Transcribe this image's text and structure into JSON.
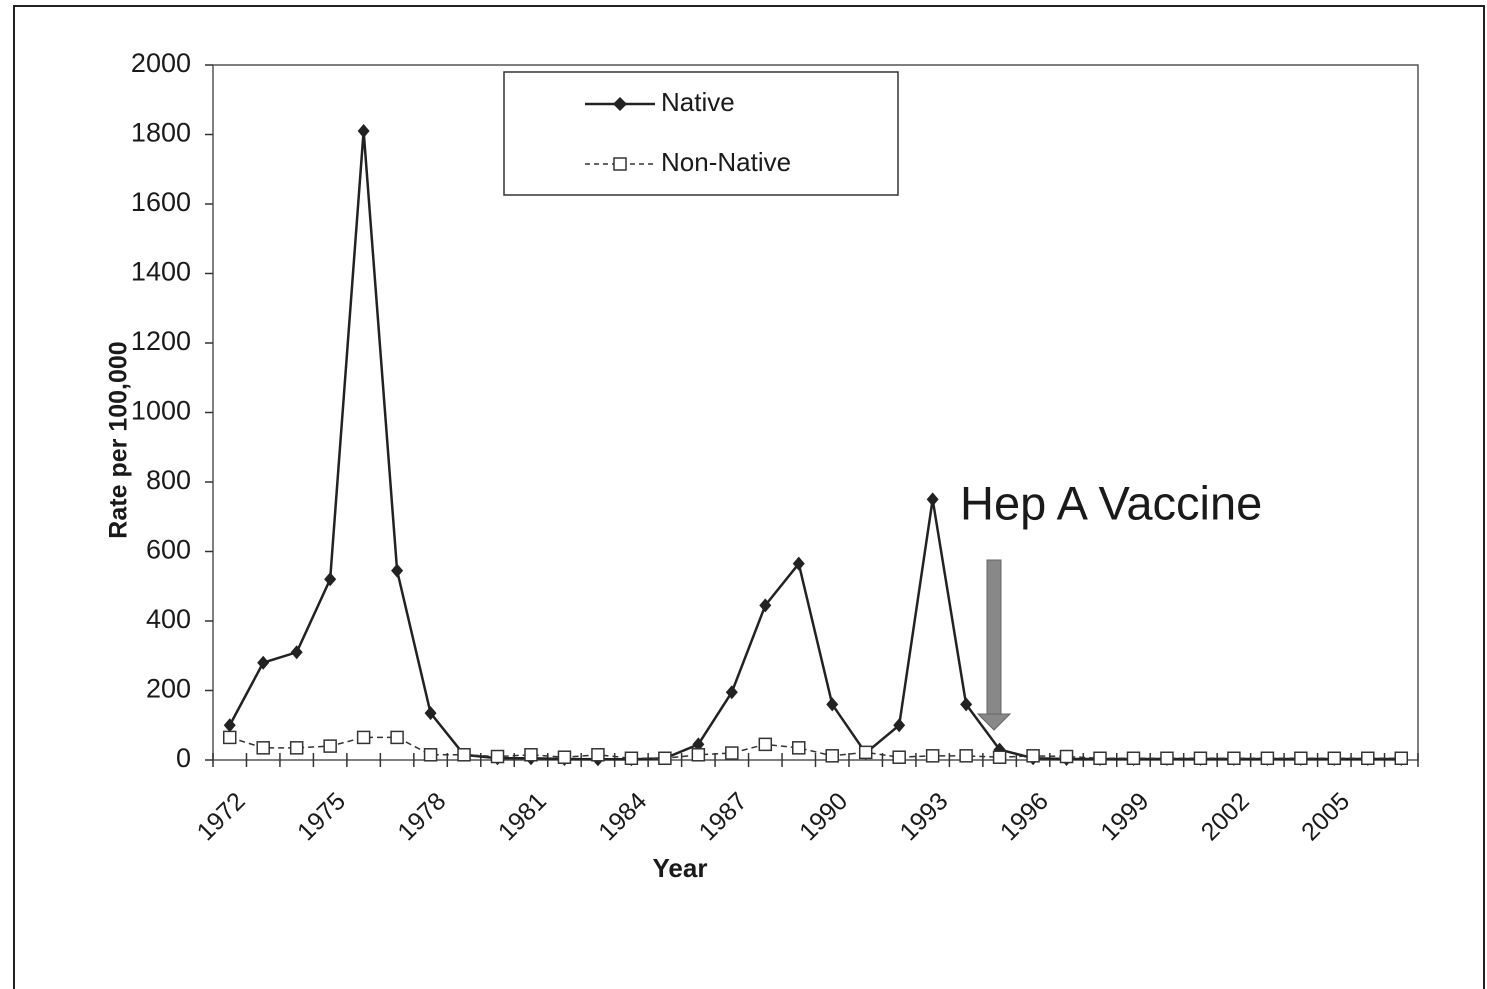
{
  "chart_data": {
    "type": "line",
    "x_label": "Year",
    "y_label": "Rate per 100,000",
    "annotation": "Hep A Vaccine",
    "categories": [
      "1972",
      null,
      null,
      "1975",
      null,
      null,
      "1978",
      null,
      null,
      "1981",
      null,
      null,
      "1984",
      null,
      null,
      "1987",
      null,
      null,
      "1990",
      null,
      null,
      "1993",
      null,
      null,
      "1996",
      null,
      null,
      "1999",
      null,
      null,
      "2002",
      null,
      null,
      "2005",
      null,
      null
    ],
    "series": [
      {
        "name": "Native",
        "color": "#222222",
        "values": [
          100,
          280,
          310,
          520,
          1810,
          545,
          135,
          15,
          5,
          5,
          3,
          2,
          2,
          5,
          45,
          195,
          445,
          565,
          160,
          20,
          100,
          750,
          160,
          30,
          5,
          3,
          3,
          3,
          3,
          3,
          3,
          3,
          3,
          3,
          3,
          3
        ]
      },
      {
        "name": "Non-Native",
        "color": "#333333",
        "values": [
          65,
          35,
          35,
          40,
          65,
          65,
          15,
          15,
          10,
          15,
          8,
          15,
          5,
          5,
          15,
          20,
          45,
          35,
          12,
          22,
          8,
          12,
          12,
          8,
          12,
          10,
          5,
          5,
          5,
          5,
          5,
          5,
          5,
          5,
          5,
          5
        ]
      }
    ],
    "ylim": [
      0,
      2000
    ],
    "yticks": [
      0,
      200,
      400,
      600,
      800,
      1000,
      1200,
      1400,
      1600,
      1800,
      2000
    ],
    "legend": "top"
  }
}
